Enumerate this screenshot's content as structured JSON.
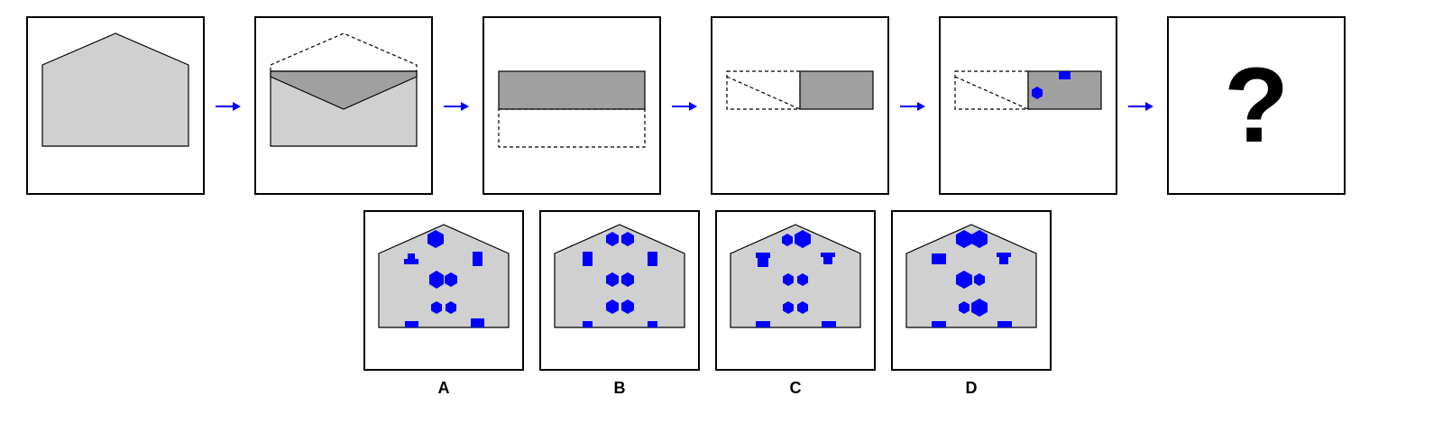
{
  "sequence": {
    "question_mark": "?",
    "steps": [
      "envelope-closed",
      "envelope-opened-flap",
      "folded-rectangle",
      "folded-half",
      "half-with-punched-holes",
      "unknown"
    ]
  },
  "options": [
    {
      "label": "A"
    },
    {
      "label": "B"
    },
    {
      "label": "C"
    },
    {
      "label": "D"
    }
  ],
  "colors": {
    "paper": "#d0d0d0",
    "fold_dark": "#a0a0a0",
    "hole": "#0000ff",
    "arrow": "#0000ff",
    "outline": "#000000"
  }
}
